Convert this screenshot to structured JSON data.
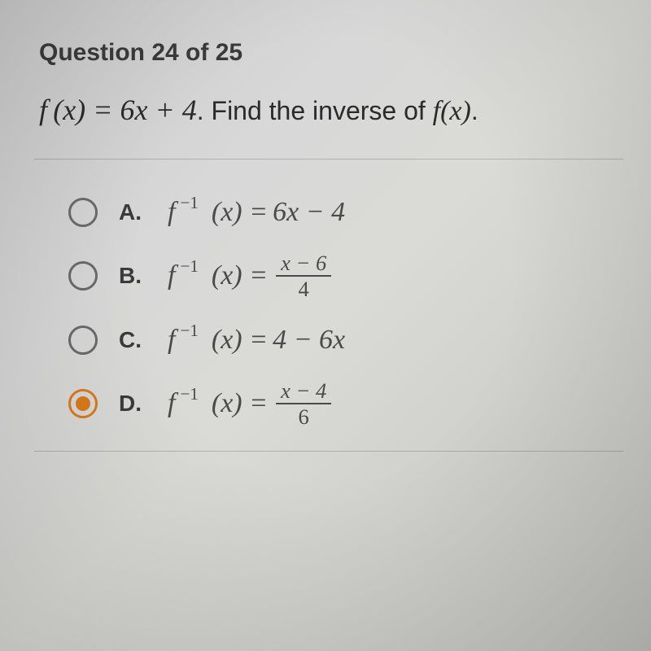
{
  "header": "Question 24 of 25",
  "prompt_func": "f (x) = 6x + 4",
  "prompt_text_mid": ". Find the inverse of ",
  "prompt_fx": "f(x)",
  "prompt_end": ".",
  "options": [
    {
      "letter": "A.",
      "lhs_f": "f",
      "lhs_exp": "−1",
      "lhs_arg": "(x) =",
      "rhs": "6x − 4",
      "selected": false
    },
    {
      "letter": "B.",
      "lhs_f": "f",
      "lhs_exp": "−1",
      "lhs_arg": "(x) =",
      "frac_num": "x − 6",
      "frac_den": "4",
      "selected": false
    },
    {
      "letter": "C.",
      "lhs_f": "f",
      "lhs_exp": "−1",
      "lhs_arg": "(x) =",
      "rhs": "4 − 6x",
      "selected": false
    },
    {
      "letter": "D.",
      "lhs_f": "f",
      "lhs_exp": "−1",
      "lhs_arg": "(x) =",
      "frac_num": "x − 4",
      "frac_den": "6",
      "selected": true
    }
  ],
  "colors": {
    "accent": "#d97a1a",
    "text": "#3a3a3a",
    "math": "#4a4a4a"
  }
}
